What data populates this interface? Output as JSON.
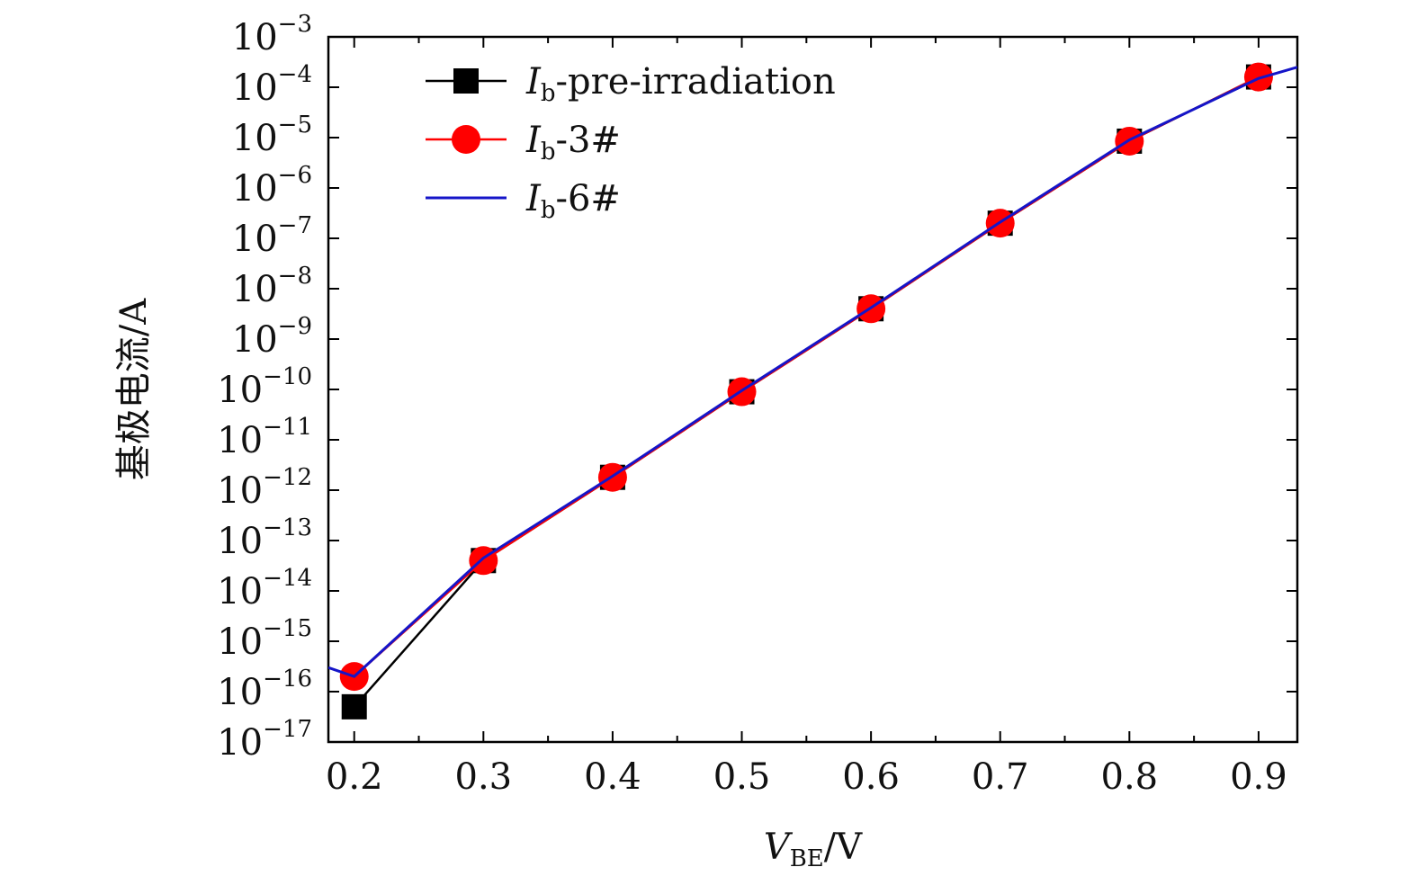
{
  "chart_data": {
    "type": "line",
    "xlabel": {
      "main": "V",
      "sub": "BE",
      "unit": "/V"
    },
    "ylabel": "基极电流/A",
    "x_ticks": [
      "0.2",
      "0.3",
      "0.4",
      "0.5",
      "0.6",
      "0.7",
      "0.8",
      "0.9"
    ],
    "x_tick_values": [
      0.2,
      0.3,
      0.4,
      0.5,
      0.6,
      0.7,
      0.8,
      0.9
    ],
    "xlim": [
      0.18,
      0.93
    ],
    "y_scale": "log",
    "ylim": [
      1e-17,
      0.001
    ],
    "y_ticks": [
      {
        "base": "10",
        "exp": "−3",
        "value": 0.001
      },
      {
        "base": "10",
        "exp": "−4",
        "value": 0.0001
      },
      {
        "base": "10",
        "exp": "−5",
        "value": 1e-05
      },
      {
        "base": "10",
        "exp": "−6",
        "value": 1e-06
      },
      {
        "base": "10",
        "exp": "−7",
        "value": 1e-07
      },
      {
        "base": "10",
        "exp": "−8",
        "value": 1e-08
      },
      {
        "base": "10",
        "exp": "−9",
        "value": 1e-09
      },
      {
        "base": "10",
        "exp": "−10",
        "value": 1e-10
      },
      {
        "base": "10",
        "exp": "−11",
        "value": 1e-11
      },
      {
        "base": "10",
        "exp": "−12",
        "value": 1e-12
      },
      {
        "base": "10",
        "exp": "−13",
        "value": 1e-13
      },
      {
        "base": "10",
        "exp": "−14",
        "value": 1e-14
      },
      {
        "base": "10",
        "exp": "−15",
        "value": 1e-15
      },
      {
        "base": "10",
        "exp": "−16",
        "value": 1e-16
      },
      {
        "base": "10",
        "exp": "−17",
        "value": 1e-17
      }
    ],
    "grid": false,
    "legend_position": "top-left",
    "series": [
      {
        "name": "I_b-pre-irradiation",
        "legend_main": "I",
        "legend_sub": "b",
        "legend_rest": "-pre-irradiation",
        "color": "#000000",
        "marker": "square",
        "x": [
          0.2,
          0.3,
          0.4,
          0.5,
          0.6,
          0.7,
          0.8,
          0.9
        ],
        "y": [
          5e-17,
          4e-14,
          1.8e-12,
          9e-11,
          4e-09,
          2e-07,
          8.5e-06,
          0.00016
        ]
      },
      {
        "name": "I_b-3#",
        "legend_main": "I",
        "legend_sub": "b",
        "legend_rest": "-3#",
        "color": "#ff0000",
        "marker": "circle",
        "x": [
          0.2,
          0.3,
          0.4,
          0.5,
          0.6,
          0.7,
          0.8,
          0.9
        ],
        "y": [
          2e-16,
          4e-14,
          1.8e-12,
          9e-11,
          4e-09,
          2e-07,
          8.5e-06,
          0.00016
        ]
      },
      {
        "name": "I_b-6#",
        "legend_main": "I",
        "legend_sub": "b",
        "legend_rest": "-6#",
        "color": "#1515c8",
        "marker": "none",
        "x": [
          0.18,
          0.2,
          0.3,
          0.4,
          0.5,
          0.6,
          0.7,
          0.8,
          0.9,
          0.93
        ],
        "y": [
          3e-16,
          2e-16,
          4.5e-14,
          1.9e-12,
          9.5e-11,
          4.2e-09,
          2.1e-07,
          9e-06,
          0.00015,
          0.00025
        ]
      }
    ]
  }
}
